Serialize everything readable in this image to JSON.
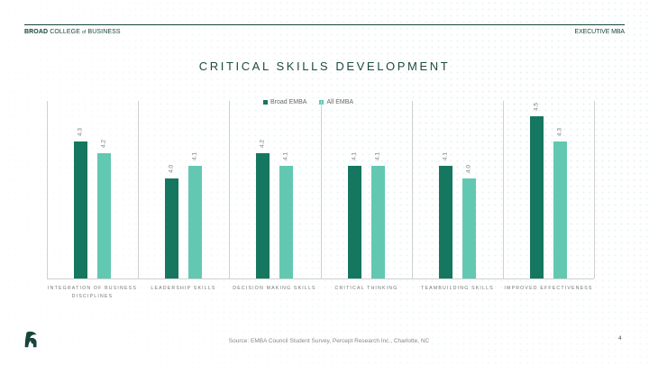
{
  "header": {
    "brand_bold": "BROAD",
    "brand_rest_1": "COLLEGE",
    "brand_of": "of",
    "brand_rest_2": "BUSINESS",
    "program": "EXECUTIVE MBA"
  },
  "slide": {
    "title": "CRITICAL SKILLS DEVELOPMENT",
    "source": "Source: EMBA Council Student Survey, Percept Research Inc., Charlotte, NC",
    "page_number": "4"
  },
  "colors": {
    "broad_emba": "#167760",
    "all_emba": "#63c8b2",
    "brand_green": "#18453b"
  },
  "chart_data": {
    "type": "bar",
    "title": "CRITICAL SKILLS DEVELOPMENT",
    "xlabel": "",
    "ylabel": "",
    "ylim": [
      3.2,
      4.6
    ],
    "grid": false,
    "legend_position": "top",
    "categories": [
      "INTEGRATION OF BUSINESS DISCIPLINES",
      "LEADERSHIP SKILLS",
      "DECISION MAKING SKILLS",
      "CRITICAL THINKING",
      "TEAMBUILDING SKILLS",
      "IMPROVED EFFECTIVENESS"
    ],
    "series": [
      {
        "name": "Broad EMBA",
        "color": "#167760",
        "values": [
          4.3,
          4.0,
          4.2,
          4.1,
          4.1,
          4.5
        ],
        "labels": [
          "4.3",
          "4.0",
          "4.2",
          "4.1",
          "4.1",
          "4.5"
        ]
      },
      {
        "name": "All EMBA",
        "color": "#63c8b2",
        "values": [
          4.2,
          4.1,
          4.1,
          4.1,
          4.0,
          4.3
        ],
        "labels": [
          "4.2",
          "4.1",
          "4.1",
          "4.1",
          "4.0",
          "4.3"
        ]
      }
    ]
  }
}
